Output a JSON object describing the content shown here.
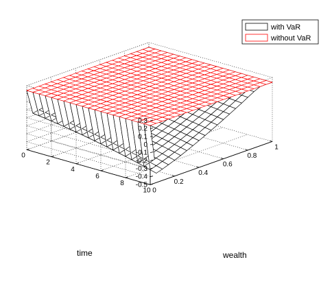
{
  "chart_data": {
    "type": "surface",
    "title": "",
    "xlabel": "wealth",
    "ylabel": "time",
    "zlabel": "",
    "xlim": [
      0,
      1
    ],
    "ylim": [
      0,
      10
    ],
    "zlim": [
      -0.5,
      0.3
    ],
    "xticks": [
      "0",
      "0.2",
      "0.4",
      "0.6",
      "0.8",
      "1"
    ],
    "yticks": [
      "0",
      "2",
      "4",
      "6",
      "8",
      "10"
    ],
    "zticks": [
      "0.3",
      "0.2",
      "0.1",
      "0",
      "-0.1",
      "-0.2",
      "-0.3",
      "-0.4",
      "-0.5"
    ],
    "grid": true,
    "legend_position": "top-right",
    "series": [
      {
        "name": "with VaR",
        "color": "#000000",
        "description_values": {
          "max": 0.24,
          "min": -0.5,
          "grid_n": 20,
          "notes": "equals 0.24 at wealth=0, drops to about -0.1 for small wealth, decreases toward -0.5 at time=10"
        }
      },
      {
        "name": "without VaR",
        "color": "#ff0000",
        "constant_value": 0.24
      }
    ]
  }
}
